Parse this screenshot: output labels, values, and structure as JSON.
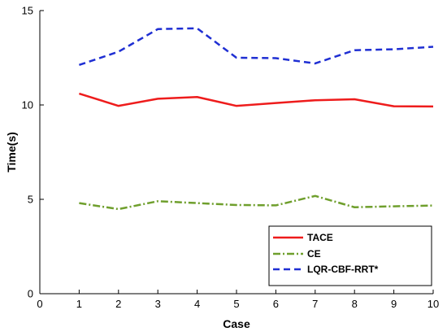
{
  "chart_data": {
    "type": "line",
    "xlabel": "Case",
    "ylabel": "Time(s)",
    "xlim": [
      0,
      10
    ],
    "ylim": [
      0,
      15
    ],
    "xticks": [
      "0",
      "1",
      "2",
      "3",
      "4",
      "5",
      "6",
      "7",
      "8",
      "9",
      "10"
    ],
    "yticks": [
      "0",
      "5",
      "10",
      "15"
    ],
    "x": [
      1,
      2,
      3,
      4,
      5,
      6,
      7,
      8,
      9,
      10
    ],
    "series": [
      {
        "name": "TACE",
        "color": "#ee1c1c",
        "style": "solid",
        "values": [
          10.6,
          9.95,
          10.33,
          10.42,
          9.95,
          10.1,
          10.25,
          10.3,
          9.93,
          9.92
        ]
      },
      {
        "name": "CE",
        "color": "#6f9f2d",
        "style": "dash-dot",
        "values": [
          4.8,
          4.48,
          4.9,
          4.8,
          4.7,
          4.68,
          5.18,
          4.58,
          4.63,
          4.67
        ]
      },
      {
        "name": "LQR-CBF-RRT*",
        "color": "#1f2fd3",
        "style": "dashed",
        "values": [
          12.12,
          12.82,
          14.02,
          14.06,
          12.5,
          12.48,
          12.2,
          12.9,
          12.95,
          13.08
        ]
      }
    ],
    "legend_position": "lower-right",
    "grid": false
  }
}
